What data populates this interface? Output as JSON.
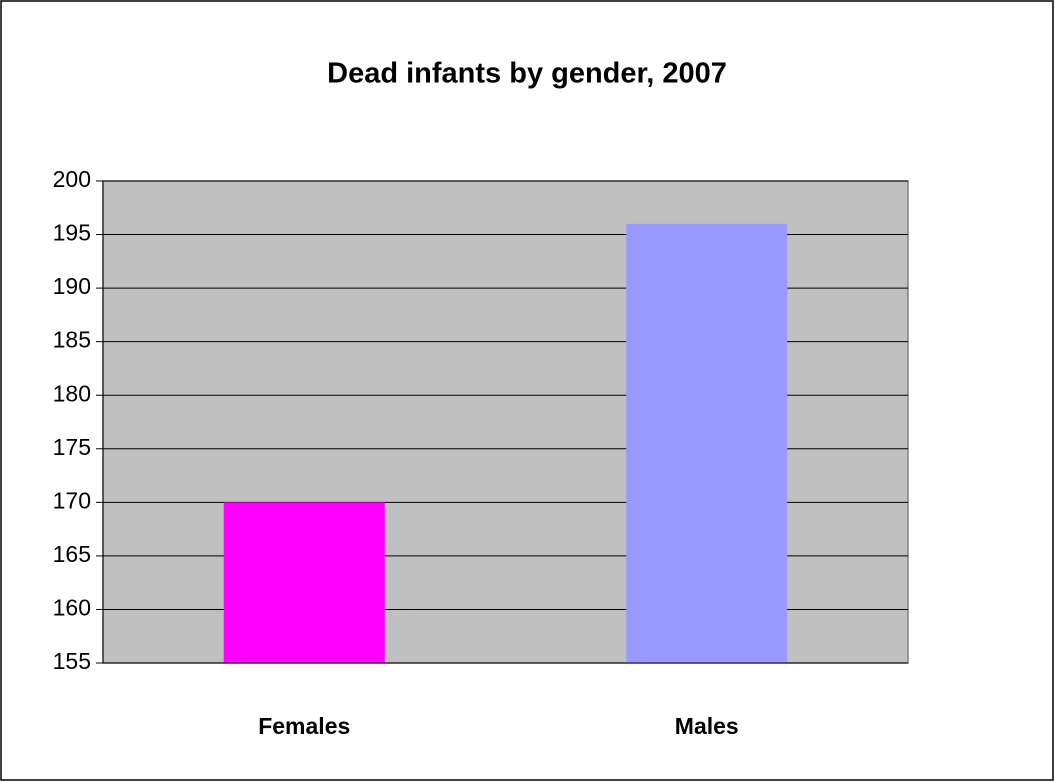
{
  "chart_data": {
    "type": "bar",
    "title": "Dead infants by gender, 2007",
    "categories": [
      "Females",
      "Males"
    ],
    "values": [
      170,
      196
    ],
    "colors": [
      "#ff00ff",
      "#9999ff"
    ],
    "ylim": [
      155,
      200
    ],
    "yticks": [
      155,
      160,
      165,
      170,
      175,
      180,
      185,
      190,
      195,
      200
    ],
    "grid": true
  }
}
